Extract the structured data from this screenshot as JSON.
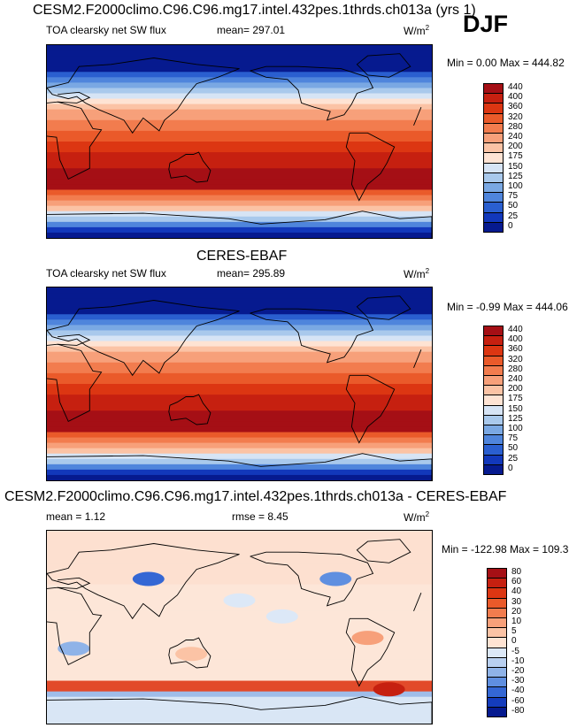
{
  "header": {
    "main_title": "CESM2.F2000climo.C96.C96.mg17.intel.432pes.1thrds.ch013a (yrs 1)",
    "season": "DJF"
  },
  "chart_data": [
    {
      "type": "heatmap",
      "title": "CESM2.F2000climo.C96.C96.mg17.intel.432pes.1thrds.ch013a (yrs 1)",
      "variable": "TOA clearsky net SW flux",
      "stat_text": "mean= 297.01",
      "units": "W/m",
      "units_sup": "2",
      "minmax_text": "Min =   0.00 Max = 444.82",
      "mean": 297.01,
      "min": 0.0,
      "max": 444.82,
      "colorbar_levels": [
        "440",
        "400",
        "360",
        "320",
        "280",
        "240",
        "200",
        "175",
        "150",
        "125",
        "100",
        "75",
        "50",
        "25",
        "0"
      ],
      "colorbar_colors": [
        "#a50f15",
        "#c62010",
        "#dc3612",
        "#ea5a2a",
        "#f27c4e",
        "#f7a07a",
        "#fbc3a5",
        "#fee3d3",
        "#d6e4f5",
        "#a9c9ec",
        "#7aa8e3",
        "#4f85dc",
        "#2a5fd0",
        "#1238bb",
        "#061a8f"
      ],
      "palette": "warm"
    },
    {
      "type": "heatmap",
      "title": "CERES-EBAF",
      "variable": "TOA clearsky net SW flux",
      "stat_text": "mean= 295.89",
      "units": "W/m",
      "units_sup": "2",
      "minmax_text": "Min =  -0.99 Max = 444.06",
      "mean": 295.89,
      "min": -0.99,
      "max": 444.06,
      "colorbar_levels": [
        "440",
        "400",
        "360",
        "320",
        "280",
        "240",
        "200",
        "175",
        "150",
        "125",
        "100",
        "75",
        "50",
        "25",
        "0"
      ],
      "colorbar_colors": [
        "#a50f15",
        "#c62010",
        "#dc3612",
        "#ea5a2a",
        "#f27c4e",
        "#f7a07a",
        "#fbc3a5",
        "#fee3d3",
        "#d6e4f5",
        "#a9c9ec",
        "#7aa8e3",
        "#4f85dc",
        "#2a5fd0",
        "#1238bb",
        "#061a8f"
      ],
      "palette": "warm"
    },
    {
      "type": "heatmap",
      "title": "CESM2.F2000climo.C96.C96.mg17.intel.432pes.1thrds.ch013a - CERES-EBAF",
      "stat_text": "mean =    1.12",
      "stat2_text": "rmse =   8.45",
      "units": "W/m",
      "units_sup": "2",
      "minmax_text": "Min = -122.98 Max = 109.39",
      "mean": 1.12,
      "rmse": 8.45,
      "min": -122.98,
      "max": 109.39,
      "colorbar_levels": [
        "80",
        "60",
        "40",
        "30",
        "20",
        "10",
        "5",
        "0",
        "-5",
        "-10",
        "-20",
        "-30",
        "-40",
        "-60",
        "-80"
      ],
      "colorbar_colors": [
        "#a50f15",
        "#c62010",
        "#dc3612",
        "#ea5a2a",
        "#f27c4e",
        "#f7a07a",
        "#fbc3a5",
        "#fee3d3",
        "#dce8f7",
        "#b9d0f0",
        "#8fb3e8",
        "#5f8fe0",
        "#3467d4",
        "#143cbc",
        "#061a8f"
      ],
      "palette": "diff"
    }
  ]
}
